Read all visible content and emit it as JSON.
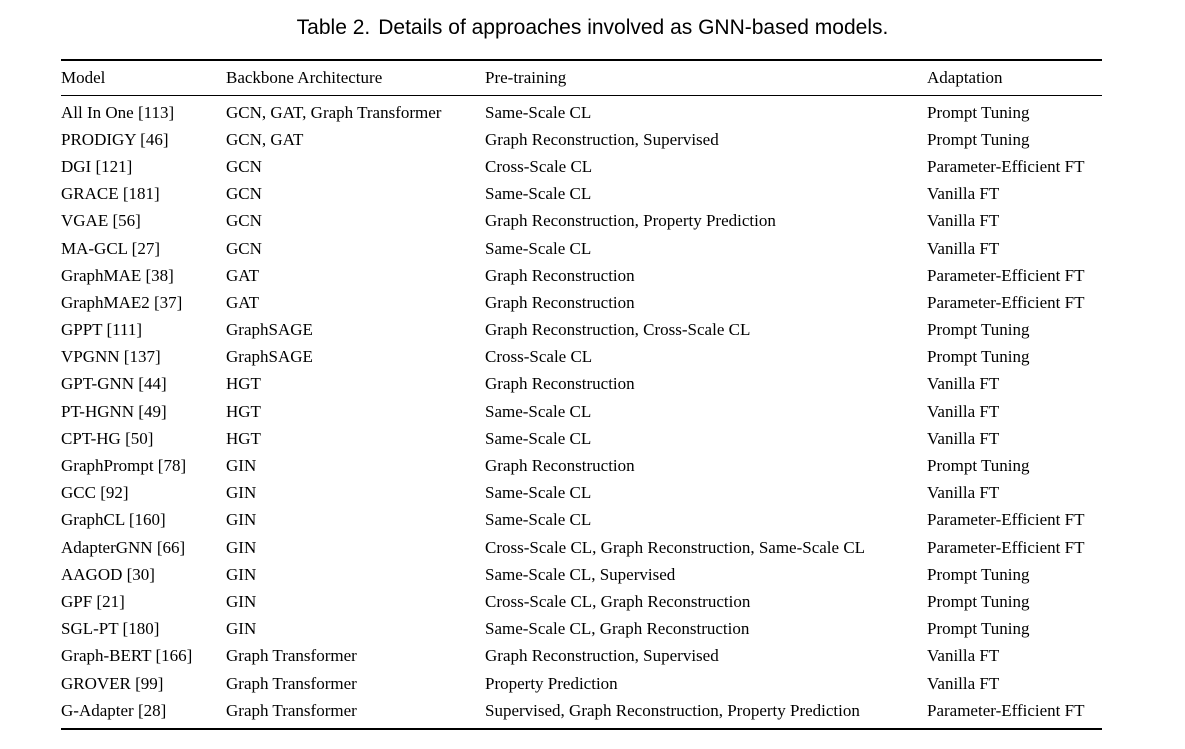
{
  "caption": {
    "number": "Table 2.",
    "text": "Details of approaches involved as GNN-based models."
  },
  "headers": {
    "model": "Model",
    "backbone": "Backbone Architecture",
    "pretraining": "Pre-training",
    "adaptation": "Adaptation"
  },
  "rows": [
    {
      "model": "All In One [113]",
      "backbone": "GCN, GAT, Graph Transformer",
      "pretraining": "Same-Scale CL",
      "adaptation": "Prompt Tuning"
    },
    {
      "model": "PRODIGY [46]",
      "backbone": "GCN, GAT",
      "pretraining": "Graph Reconstruction, Supervised",
      "adaptation": "Prompt Tuning"
    },
    {
      "model": "DGI [121]",
      "backbone": "GCN",
      "pretraining": "Cross-Scale CL",
      "adaptation": "Parameter-Efficient FT"
    },
    {
      "model": "GRACE [181]",
      "backbone": "GCN",
      "pretraining": "Same-Scale CL",
      "adaptation": "Vanilla FT"
    },
    {
      "model": "VGAE [56]",
      "backbone": "GCN",
      "pretraining": "Graph Reconstruction, Property Prediction",
      "adaptation": "Vanilla FT"
    },
    {
      "model": "MA-GCL [27]",
      "backbone": "GCN",
      "pretraining": "Same-Scale CL",
      "adaptation": "Vanilla FT"
    },
    {
      "model": "GraphMAE [38]",
      "backbone": "GAT",
      "pretraining": "Graph Reconstruction",
      "adaptation": "Parameter-Efficient FT"
    },
    {
      "model": "GraphMAE2 [37]",
      "backbone": "GAT",
      "pretraining": "Graph Reconstruction",
      "adaptation": "Parameter-Efficient FT"
    },
    {
      "model": "GPPT [111]",
      "backbone": "GraphSAGE",
      "pretraining": "Graph Reconstruction, Cross-Scale CL",
      "adaptation": "Prompt Tuning"
    },
    {
      "model": "VPGNN [137]",
      "backbone": "GraphSAGE",
      "pretraining": "Cross-Scale CL",
      "adaptation": "Prompt Tuning"
    },
    {
      "model": "GPT-GNN [44]",
      "backbone": "HGT",
      "pretraining": "Graph Reconstruction",
      "adaptation": "Vanilla FT"
    },
    {
      "model": "PT-HGNN [49]",
      "backbone": "HGT",
      "pretraining": "Same-Scale CL",
      "adaptation": "Vanilla FT"
    },
    {
      "model": "CPT-HG [50]",
      "backbone": "HGT",
      "pretraining": "Same-Scale CL",
      "adaptation": "Vanilla FT"
    },
    {
      "model": "GraphPrompt [78]",
      "backbone": "GIN",
      "pretraining": "Graph Reconstruction",
      "adaptation": "Prompt Tuning"
    },
    {
      "model": "GCC [92]",
      "backbone": "GIN",
      "pretraining": "Same-Scale CL",
      "adaptation": "Vanilla FT"
    },
    {
      "model": "GraphCL [160]",
      "backbone": "GIN",
      "pretraining": "Same-Scale CL",
      "adaptation": "Parameter-Efficient FT"
    },
    {
      "model": "AdapterGNN [66]",
      "backbone": "GIN",
      "pretraining": "Cross-Scale CL, Graph Reconstruction, Same-Scale CL",
      "adaptation": "Parameter-Efficient FT"
    },
    {
      "model": "AAGOD [30]",
      "backbone": "GIN",
      "pretraining": "Same-Scale CL, Supervised",
      "adaptation": "Prompt Tuning"
    },
    {
      "model": "GPF [21]",
      "backbone": "GIN",
      "pretraining": "Cross-Scale CL, Graph Reconstruction",
      "adaptation": "Prompt Tuning"
    },
    {
      "model": "SGL-PT [180]",
      "backbone": "GIN",
      "pretraining": "Same-Scale CL, Graph Reconstruction",
      "adaptation": "Prompt Tuning"
    },
    {
      "model": "Graph-BERT [166]",
      "backbone": "Graph Transformer",
      "pretraining": "Graph Reconstruction, Supervised",
      "adaptation": "Vanilla FT"
    },
    {
      "model": "GROVER [99]",
      "backbone": "Graph Transformer",
      "pretraining": "Property Prediction",
      "adaptation": "Vanilla FT"
    },
    {
      "model": "G-Adapter [28]",
      "backbone": "Graph Transformer",
      "pretraining": "Supervised, Graph Reconstruction, Property Prediction",
      "adaptation": "Parameter-Efficient FT"
    }
  ]
}
